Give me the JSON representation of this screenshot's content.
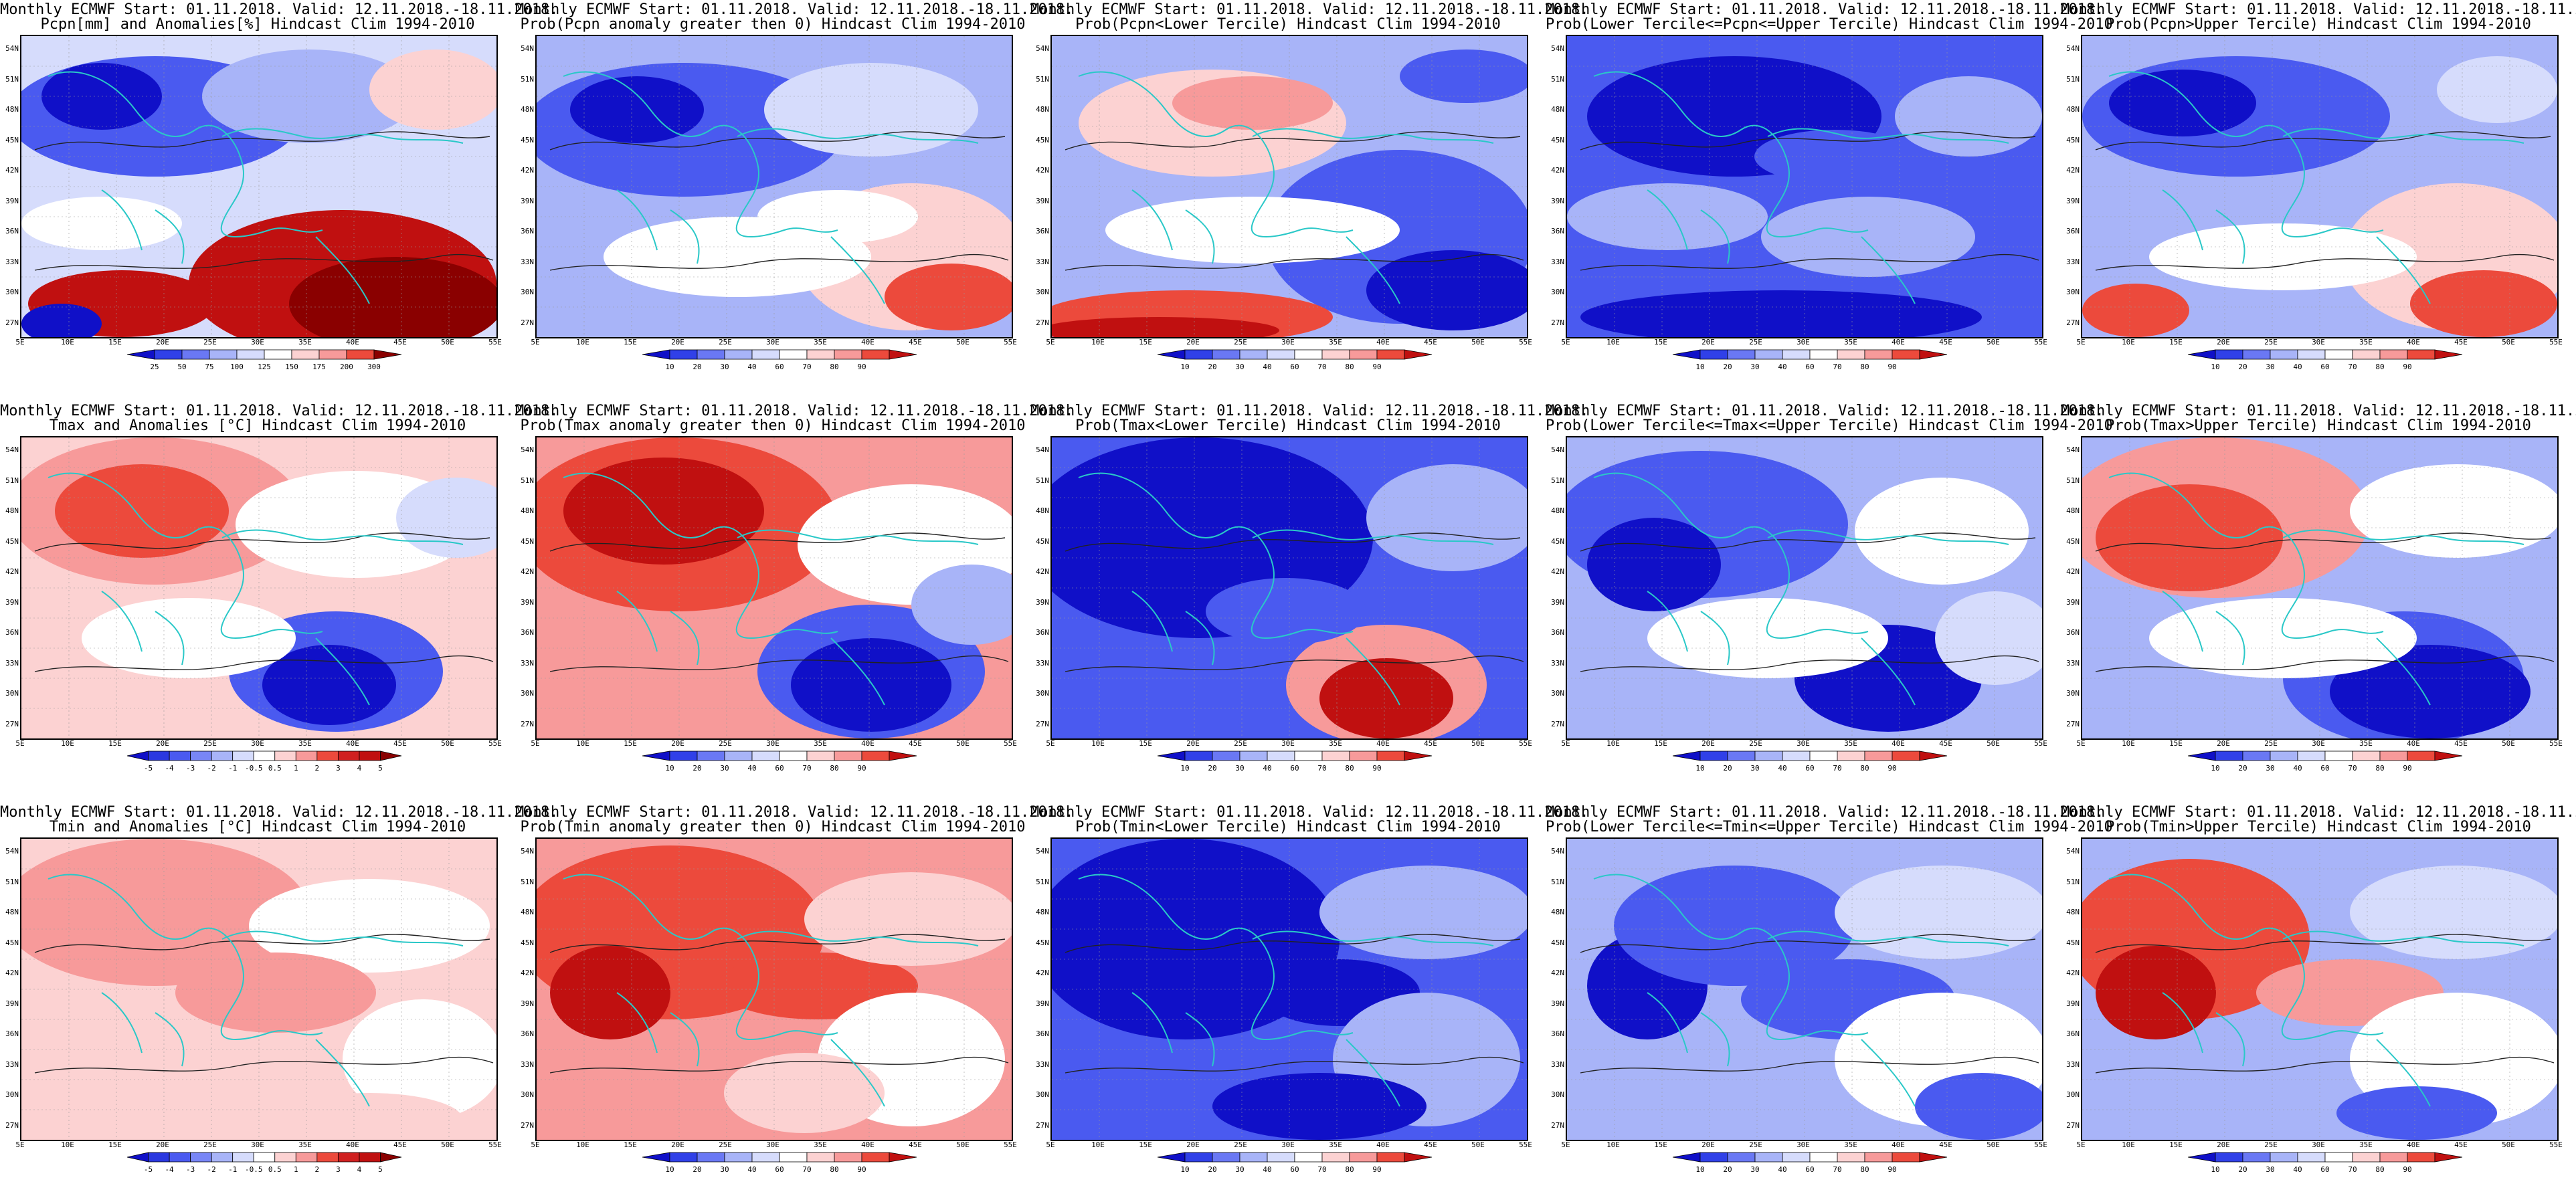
{
  "header_line": "Monthly ECMWF Start: 01.11.2018. Valid: 12.11.2018.-18.11.2018.",
  "lat_labels": [
    "54N",
    "51N",
    "48N",
    "45N",
    "42N",
    "39N",
    "36N",
    "33N",
    "30N",
    "27N"
  ],
  "lon_labels": [
    "5E",
    "10E",
    "15E",
    "20E",
    "25E",
    "30E",
    "35E",
    "40E",
    "45E",
    "50E",
    "55E"
  ],
  "colors": {
    "deep_blue": "#1010c8",
    "mid_blue": "#4a5af0",
    "light_blue": "#a8b4f8",
    "pale_blue": "#d6dcfc",
    "white": "#ffffff",
    "pale_red": "#fcd2d2",
    "light_red": "#f79a9a",
    "mid_red": "#ec4a3c",
    "deep_red": "#c01010",
    "dark_red": "#8a0000",
    "coast": "#2ac8c8",
    "contour": "#222222"
  },
  "colorbars": {
    "precip_anom": [
      "25",
      "50",
      "75",
      "100",
      "125",
      "150",
      "175",
      "200",
      "300"
    ],
    "prob": [
      "10",
      "20",
      "30",
      "40",
      "60",
      "70",
      "80",
      "90"
    ],
    "temp_anom": [
      "-5",
      "-4",
      "-3",
      "-2",
      "-1",
      "-0.5",
      "0.5",
      "1",
      "2",
      "3",
      "4",
      "5"
    ]
  },
  "panels": [
    {
      "id": "r1c1",
      "subtitle": "Pcpn[mm] and Anomalies[%] Hindcast Clim 1994-2010",
      "colorbar": "precip_anom",
      "pattern": "precip_anom"
    },
    {
      "id": "r1c2",
      "subtitle": "Prob(Pcpn anomaly greater then 0) Hindcast Clim 1994-2010",
      "colorbar": "prob",
      "pattern": "precip_prob_gt0"
    },
    {
      "id": "r1c3",
      "subtitle": "Prob(Pcpn<Lower Tercile) Hindcast Clim 1994-2010",
      "colorbar": "prob",
      "pattern": "precip_lower"
    },
    {
      "id": "r1c4",
      "subtitle": "Prob(Lower Tercile<=Pcpn<=Upper Tercile) Hindcast Clim 1994-2010",
      "colorbar": "prob",
      "pattern": "precip_middle"
    },
    {
      "id": "r1c5",
      "subtitle": "Prob(Pcpn>Upper Tercile) Hindcast Clim 1994-2010",
      "colorbar": "prob",
      "pattern": "precip_upper"
    },
    {
      "id": "r2c1",
      "subtitle": "Tmax and Anomalies [°C] Hindcast Clim 1994-2010",
      "colorbar": "temp_anom",
      "pattern": "tmax_anom"
    },
    {
      "id": "r2c2",
      "subtitle": "Prob(Tmax anomaly greater then 0) Hindcast Clim 1994-2010",
      "colorbar": "prob",
      "pattern": "tmax_prob_gt0"
    },
    {
      "id": "r2c3",
      "subtitle": "Prob(Tmax<Lower Tercile) Hindcast Clim 1994-2010",
      "colorbar": "prob",
      "pattern": "tmax_lower"
    },
    {
      "id": "r2c4",
      "subtitle": "Prob(Lower Tercile<=Tmax<=Upper Tercile) Hindcast Clim 1994-2010",
      "colorbar": "prob",
      "pattern": "tmax_middle"
    },
    {
      "id": "r2c5",
      "subtitle": "Prob(Tmax>Upper Tercile) Hindcast Clim 1994-2010",
      "colorbar": "prob",
      "pattern": "tmax_upper"
    },
    {
      "id": "r3c1",
      "subtitle": "Tmin and Anomalies [°C] Hindcast Clim 1994-2010",
      "colorbar": "temp_anom",
      "pattern": "tmin_anom"
    },
    {
      "id": "r3c2",
      "subtitle": "Prob(Tmin anomaly greater then 0) Hindcast Clim 1994-2010",
      "colorbar": "prob",
      "pattern": "tmin_prob_gt0"
    },
    {
      "id": "r3c3",
      "subtitle": "Prob(Tmin<Lower Tercile) Hindcast Clim 1994-2010",
      "colorbar": "prob",
      "pattern": "tmin_lower"
    },
    {
      "id": "r3c4",
      "subtitle": "Prob(Lower Tercile<=Tmin<=Upper Tercile) Hindcast Clim 1994-2010",
      "colorbar": "prob",
      "pattern": "tmin_middle"
    },
    {
      "id": "r3c5",
      "subtitle": "Prob(Tmin>Upper Tercile) Hindcast Clim 1994-2010",
      "colorbar": "prob",
      "pattern": "tmin_upper"
    }
  ]
}
